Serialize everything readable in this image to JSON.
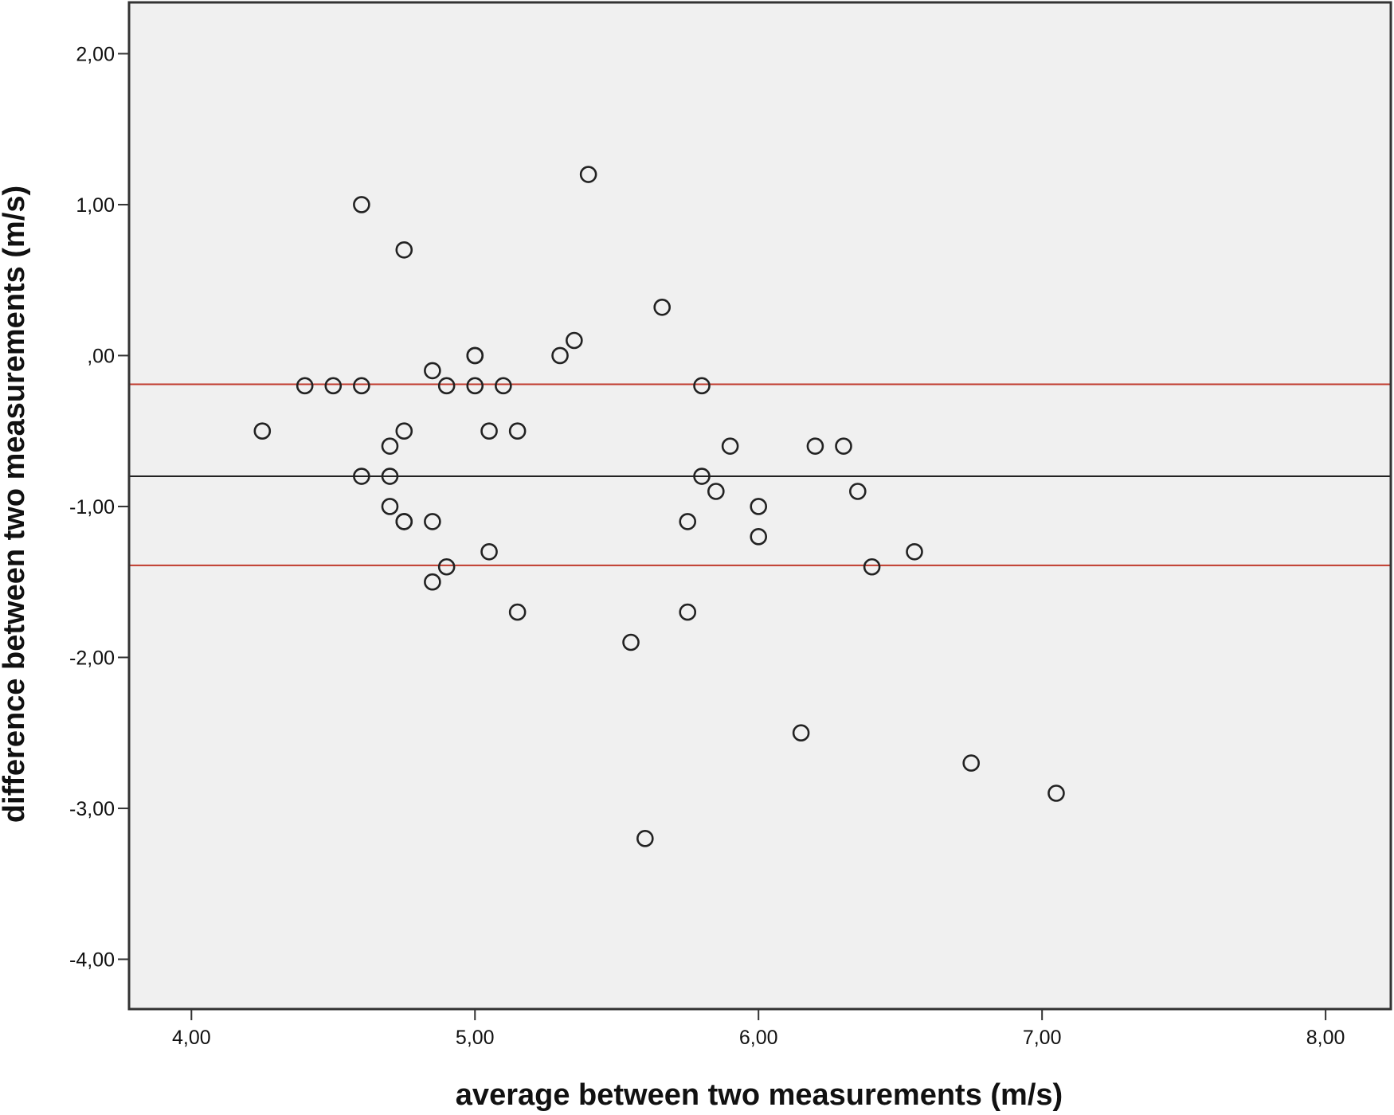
{
  "chart_data": {
    "type": "scatter",
    "title": "",
    "xlabel": "average between two measurements (m/s)",
    "ylabel": "difference between two measurements (m/s)",
    "xlim": [
      3.78,
      8.23
    ],
    "ylim": [
      -4.33,
      2.34
    ],
    "xticks": [
      4,
      5,
      6,
      7,
      8
    ],
    "xtick_labels": [
      "4,00",
      "5,00",
      "6,00",
      "7,00",
      "8,00"
    ],
    "yticks": [
      2,
      1,
      0,
      -1,
      -2,
      -3,
      -4
    ],
    "ytick_labels": [
      "2,00",
      "1,00",
      ",00",
      "-1,00",
      "-2,00",
      "-3,00",
      "-4,00"
    ],
    "grid": false,
    "legend": "none",
    "reference_lines": [
      {
        "role": "mean",
        "y": -0.8,
        "color": "#222222"
      },
      {
        "role": "upper-limit",
        "y": -0.19,
        "color": "#c0392b"
      },
      {
        "role": "lower-limit",
        "y": -1.39,
        "color": "#c0392b"
      }
    ],
    "colors": {
      "plot_background": "#f0f0f0",
      "marker_stroke": "#222222"
    },
    "points": [
      {
        "x": 4.25,
        "y": -0.5
      },
      {
        "x": 4.4,
        "y": -0.2
      },
      {
        "x": 4.5,
        "y": -0.2
      },
      {
        "x": 4.6,
        "y": 1.0
      },
      {
        "x": 4.6,
        "y": -0.2
      },
      {
        "x": 4.6,
        "y": -0.8
      },
      {
        "x": 4.7,
        "y": -0.6
      },
      {
        "x": 4.7,
        "y": -0.8
      },
      {
        "x": 4.7,
        "y": -1.0
      },
      {
        "x": 4.75,
        "y": 0.7
      },
      {
        "x": 4.75,
        "y": -0.5
      },
      {
        "x": 4.75,
        "y": -1.1
      },
      {
        "x": 4.75,
        "y": -1.1
      },
      {
        "x": 4.85,
        "y": -0.1
      },
      {
        "x": 4.85,
        "y": -1.1
      },
      {
        "x": 4.85,
        "y": -1.5
      },
      {
        "x": 4.9,
        "y": -0.2
      },
      {
        "x": 4.9,
        "y": -1.4
      },
      {
        "x": 5.0,
        "y": 0.0
      },
      {
        "x": 5.0,
        "y": 0.0
      },
      {
        "x": 5.0,
        "y": -0.2
      },
      {
        "x": 5.05,
        "y": -0.5
      },
      {
        "x": 5.05,
        "y": -1.3
      },
      {
        "x": 5.1,
        "y": -0.2
      },
      {
        "x": 5.15,
        "y": -0.5
      },
      {
        "x": 5.15,
        "y": -1.7
      },
      {
        "x": 5.3,
        "y": 0.0
      },
      {
        "x": 5.35,
        "y": 0.1
      },
      {
        "x": 5.4,
        "y": 1.2
      },
      {
        "x": 5.55,
        "y": -1.9
      },
      {
        "x": 5.6,
        "y": -3.2
      },
      {
        "x": 5.66,
        "y": 0.32
      },
      {
        "x": 5.75,
        "y": -1.1
      },
      {
        "x": 5.75,
        "y": -1.7
      },
      {
        "x": 5.8,
        "y": -0.2
      },
      {
        "x": 5.8,
        "y": -0.8
      },
      {
        "x": 5.85,
        "y": -0.9
      },
      {
        "x": 5.9,
        "y": -0.6
      },
      {
        "x": 6.0,
        "y": -1.0
      },
      {
        "x": 6.0,
        "y": -1.2
      },
      {
        "x": 6.15,
        "y": -2.5
      },
      {
        "x": 6.2,
        "y": -0.6
      },
      {
        "x": 6.3,
        "y": -0.6
      },
      {
        "x": 6.35,
        "y": -0.9
      },
      {
        "x": 6.4,
        "y": -1.4
      },
      {
        "x": 6.55,
        "y": -1.3
      },
      {
        "x": 6.75,
        "y": -2.7
      },
      {
        "x": 7.05,
        "y": -2.9
      }
    ]
  }
}
